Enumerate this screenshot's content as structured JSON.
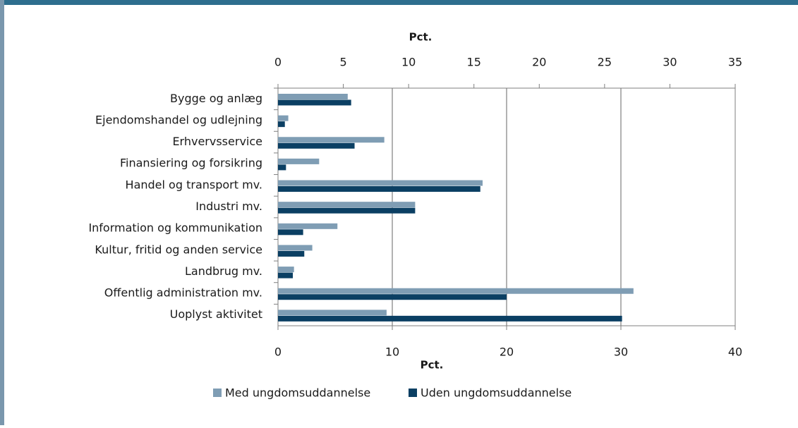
{
  "chart_data": {
    "type": "bar",
    "orientation": "horizontal",
    "categories": [
      "Bygge og anlæg",
      "Ejendomshandel og udlejning",
      "Erhvervsservice",
      "Finansiering og forsikring",
      "Handel og transport mv.",
      "Industri mv.",
      "Information og kommunikation",
      "Kultur, fritid og anden service",
      "Landbrug mv.",
      "Offentlig administration mv.",
      "Uoplyst aktivitet"
    ],
    "series": [
      {
        "name": "Med ungdomsuddannelse",
        "color": "#7f9db4",
        "values": [
          6.1,
          0.9,
          9.3,
          3.6,
          17.9,
          12.0,
          5.2,
          3.0,
          1.4,
          31.1,
          9.5
        ]
      },
      {
        "name": "Uden ungdomsuddannelse",
        "color": "#0b3f63",
        "values": [
          6.4,
          0.6,
          6.7,
          0.7,
          17.7,
          12.0,
          2.2,
          2.3,
          1.3,
          20.0,
          30.1
        ]
      }
    ],
    "xlabel": "Pct.",
    "x2label": "Pct.",
    "xlim": [
      0,
      40
    ],
    "xticks": [
      0,
      10,
      20,
      30,
      40
    ],
    "x2lim": [
      0,
      35
    ],
    "x2ticks": [
      0,
      5,
      10,
      15,
      20,
      25,
      30,
      35
    ],
    "grid": true,
    "legend": "bottom"
  }
}
